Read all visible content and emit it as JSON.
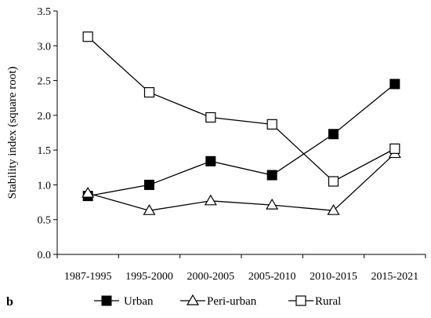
{
  "panel_label": "b",
  "chart_data": {
    "type": "line",
    "title": "",
    "xlabel": "",
    "ylabel": "Stability index (square root)",
    "categories": [
      "1987-1995",
      "1995-2000",
      "2000-2005",
      "2005-2010",
      "2010-2015",
      "2015-2021"
    ],
    "ylim": [
      0.0,
      3.5
    ],
    "yticks": [
      "0.0",
      "0.5",
      "1.0",
      "1.5",
      "2.0",
      "2.5",
      "3.0",
      "3.5"
    ],
    "grid": false,
    "legend_position": "bottom",
    "series": [
      {
        "name": "Urban",
        "marker": "filled-square",
        "values": [
          0.84,
          1.0,
          1.34,
          1.14,
          1.73,
          2.45
        ]
      },
      {
        "name": "Peri-urban",
        "marker": "open-triangle",
        "values": [
          0.88,
          0.63,
          0.77,
          0.71,
          0.63,
          1.45
        ]
      },
      {
        "name": "Rural",
        "marker": "open-square",
        "values": [
          3.13,
          2.33,
          1.97,
          1.87,
          1.05,
          1.52
        ]
      }
    ]
  }
}
